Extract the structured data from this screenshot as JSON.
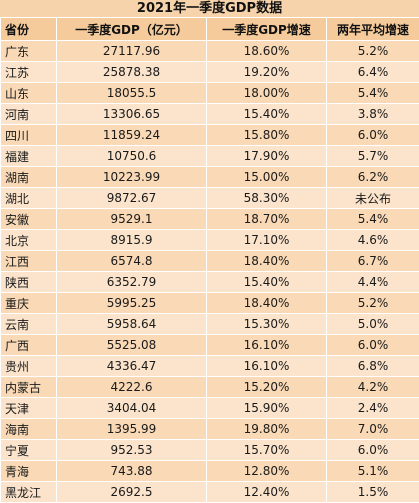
{
  "title": "2021年一季度GDP数据",
  "headers": [
    "省份",
    "一季度GDP（亿元）",
    "一季度GDP增速",
    "两年平均增速"
  ],
  "rows": [
    [
      "广东",
      "27117.96",
      "18.60%",
      "5.2%"
    ],
    [
      "江苏",
      "25878.38",
      "19.20%",
      "6.4%"
    ],
    [
      "山东",
      "18055.5",
      "18.00%",
      "5.4%"
    ],
    [
      "河南",
      "13306.65",
      "15.40%",
      "3.8%"
    ],
    [
      "四川",
      "11859.24",
      "15.80%",
      "6.0%"
    ],
    [
      "福建",
      "10750.6",
      "17.90%",
      "5.7%"
    ],
    [
      "湖南",
      "10223.99",
      "15.00%",
      "6.2%"
    ],
    [
      "湖北",
      "9872.67",
      "58.30%",
      "未公布"
    ],
    [
      "安徽",
      "9529.1",
      "18.70%",
      "5.4%"
    ],
    [
      "北京",
      "8915.9",
      "17.10%",
      "4.6%"
    ],
    [
      "江西",
      "6574.8",
      "18.40%",
      "6.7%"
    ],
    [
      "陕西",
      "6352.79",
      "15.40%",
      "4.4%"
    ],
    [
      "重庆",
      "5995.25",
      "18.40%",
      "5.2%"
    ],
    [
      "云南",
      "5958.64",
      "15.30%",
      "5.0%"
    ],
    [
      "广西",
      "5525.08",
      "16.10%",
      "6.0%"
    ],
    [
      "贵州",
      "4336.47",
      "16.10%",
      "6.8%"
    ],
    [
      "内蒙古",
      "4222.6",
      "15.20%",
      "4.2%"
    ],
    [
      "天津",
      "3404.04",
      "15.90%",
      "2.4%"
    ],
    [
      "海南",
      "1395.99",
      "19.80%",
      "7.0%"
    ],
    [
      "宁夏",
      "952.53",
      "15.70%",
      "6.0%"
    ],
    [
      "青海",
      "743.88",
      "12.80%",
      "5.1%"
    ],
    [
      "黑龙江",
      "2692.5",
      "12.40%",
      "1.5%"
    ]
  ],
  "colors": {
    "background": "#f3c79a",
    "row_light": "#fbe4cb",
    "row_dark": "#f9d9b6",
    "border": "#ffffff"
  }
}
